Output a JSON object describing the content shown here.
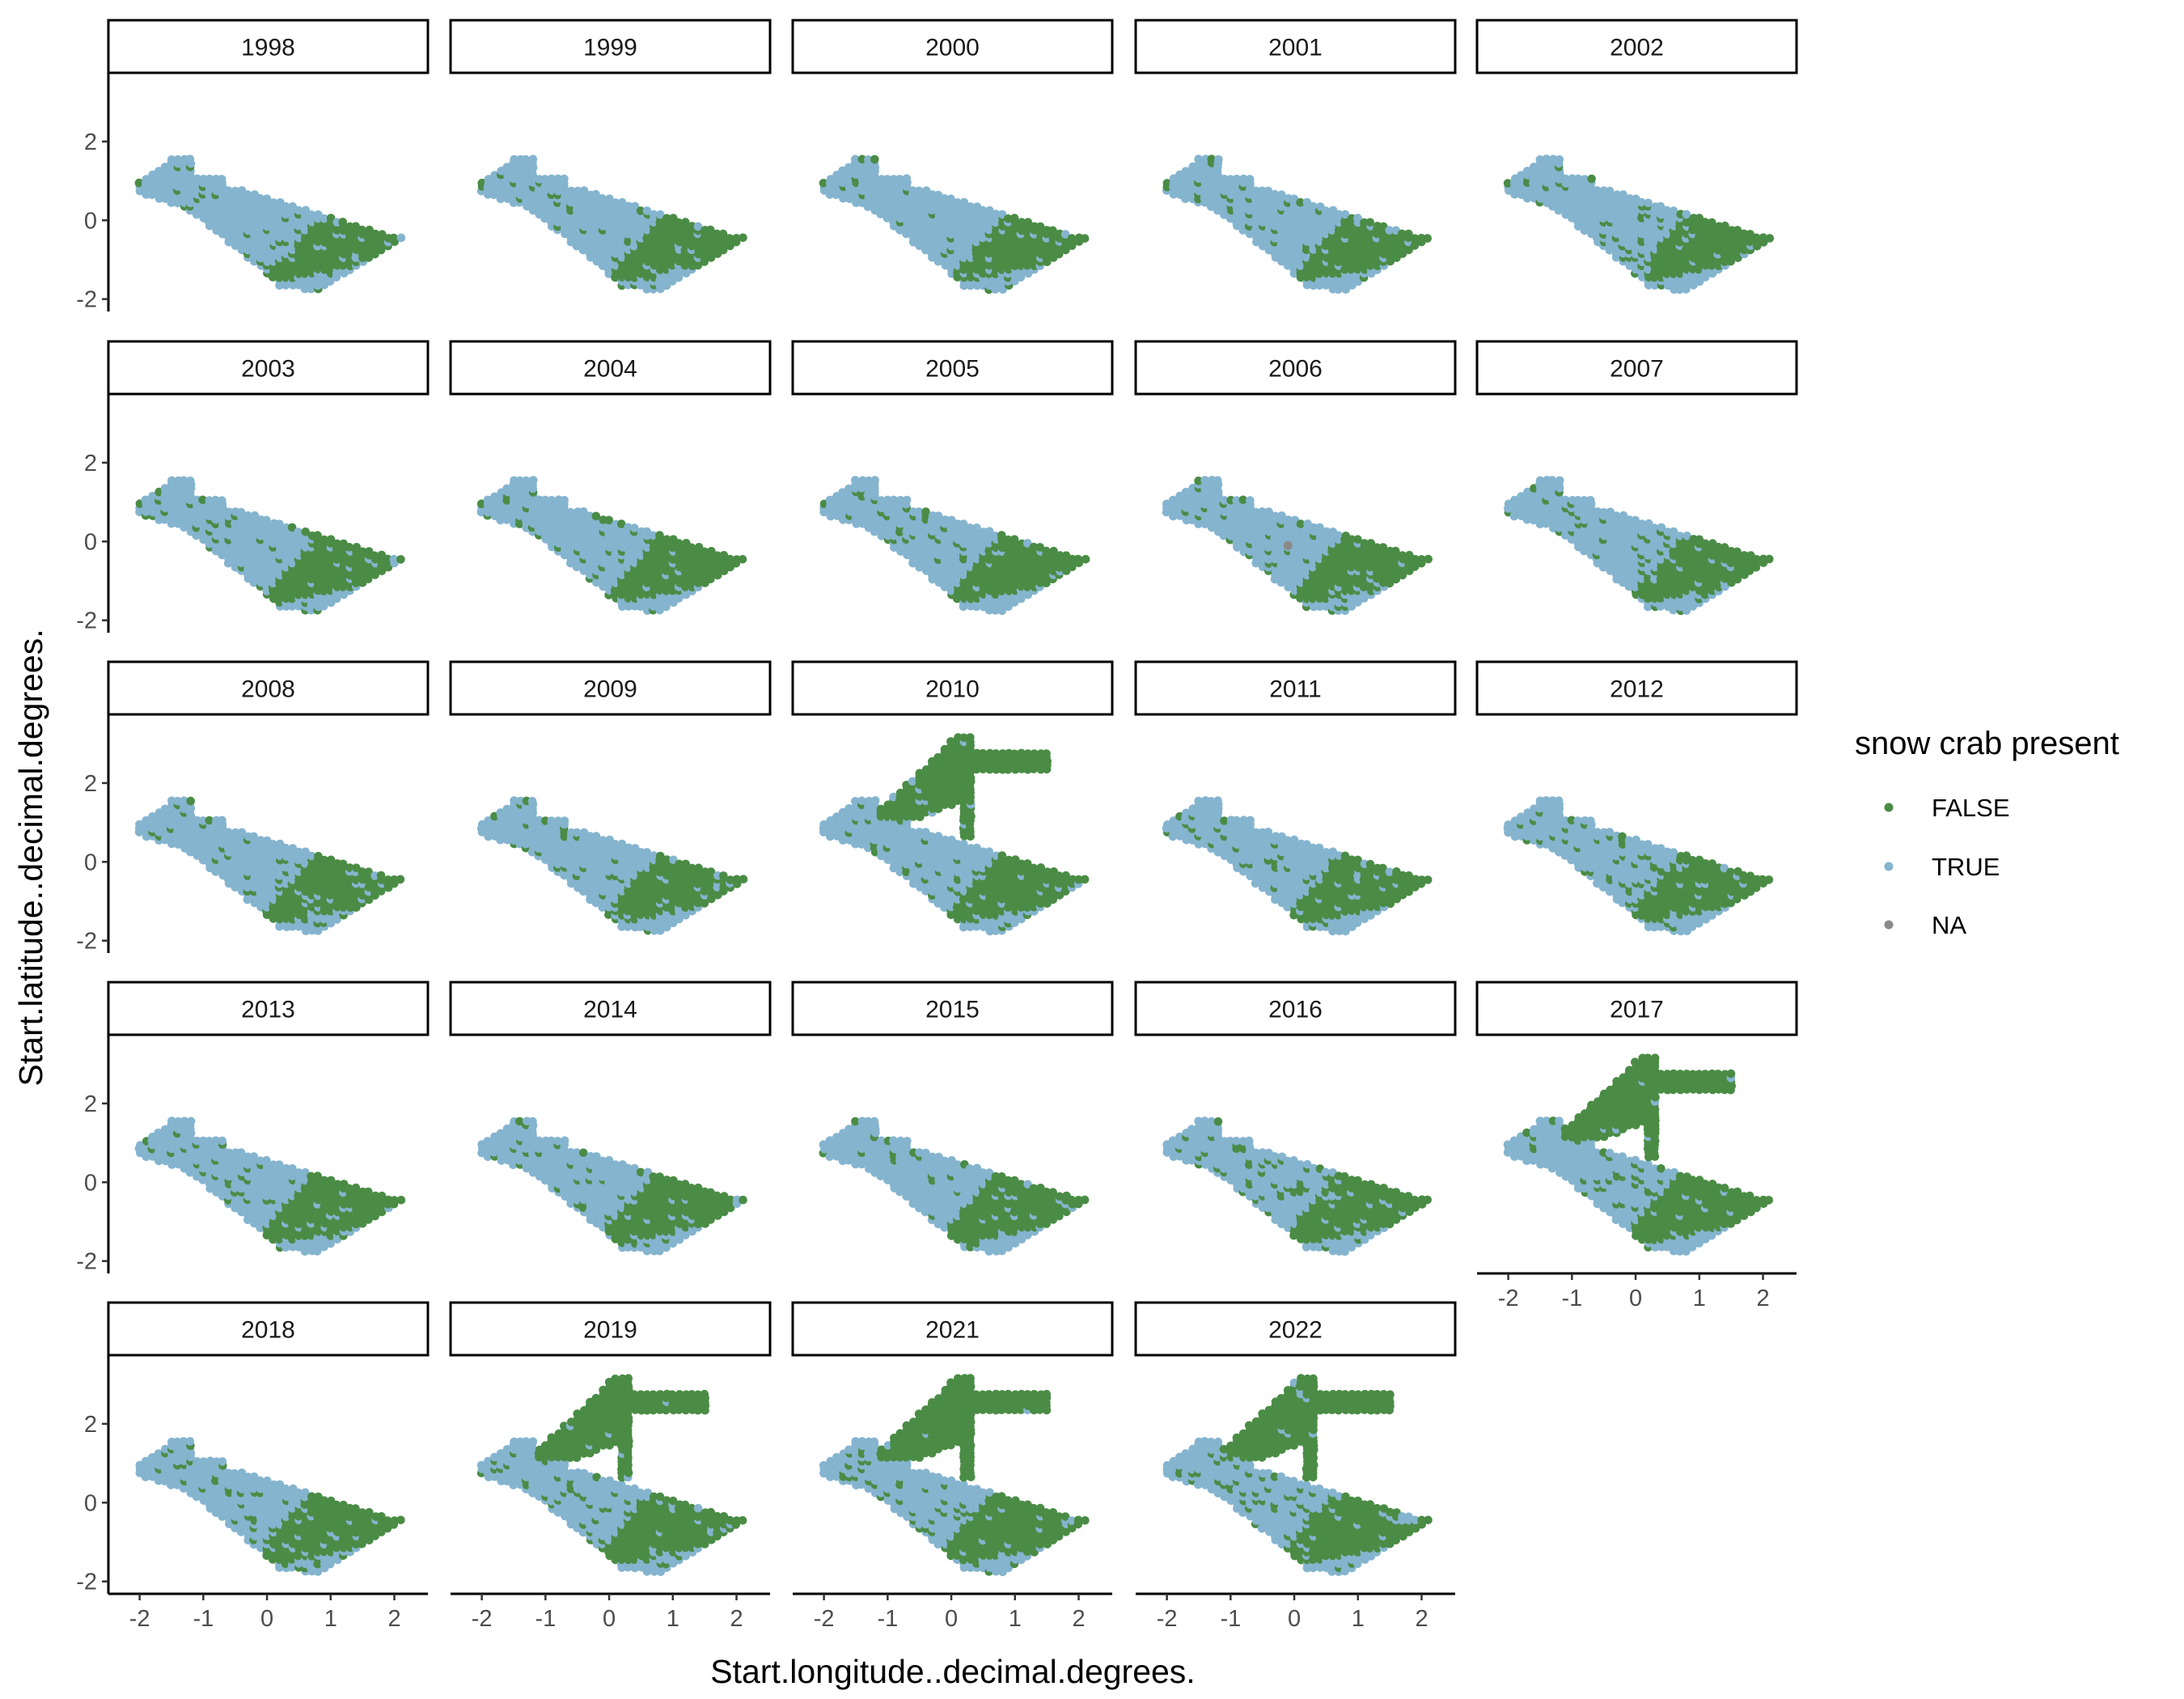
{
  "chart_data": {
    "type": "scatter",
    "facet_by": "year",
    "panels": [
      "1998",
      "1999",
      "2000",
      "2001",
      "2002",
      "2003",
      "2004",
      "2005",
      "2006",
      "2007",
      "2008",
      "2009",
      "2010",
      "2011",
      "2012",
      "2013",
      "2014",
      "2015",
      "2016",
      "2017",
      "2018",
      "2019",
      "2021",
      "2022"
    ],
    "xlabel": "Start.longitude..decimal.degrees.",
    "ylabel": "Start.latitude..decimal.degrees.",
    "x_ticks": [
      "-2",
      "-1",
      "0",
      "1",
      "2"
    ],
    "y_ticks": [
      "-2",
      "0",
      "2"
    ],
    "xlim": [
      -2.3,
      2.4
    ],
    "ylim": [
      -2.15,
      3.6
    ],
    "grid": false,
    "legend": {
      "title": "snow crab present",
      "placement": "right",
      "entries": [
        {
          "label": "FALSE",
          "color": "#4a8c45"
        },
        {
          "label": "TRUE",
          "color": "#85b4cf"
        },
        {
          "label": "NA",
          "color": "#8a8a8a"
        }
      ]
    },
    "extended_survey_years": [
      "2010",
      "2017",
      "2019",
      "2021",
      "2022"
    ],
    "na_points": [
      {
        "panel": "2006",
        "x": -0.1,
        "y": -0.1
      }
    ],
    "note": "Each panel plots survey stations on a regular grid over the survey area; points are coloured by snow crab presence."
  }
}
